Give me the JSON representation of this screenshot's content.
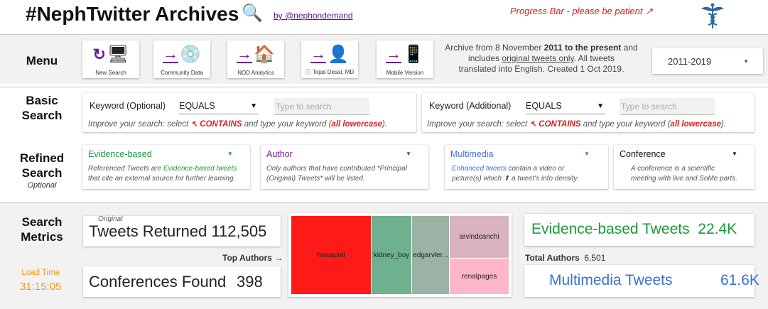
{
  "header": {
    "title": "#NephTwitter Archives",
    "search_icon": "magnifier-icon",
    "byline": "by @nephondemand",
    "progress": "Progress Bar - please be patient ↗",
    "logo_icon": "caduceus-icon"
  },
  "menu": {
    "label": "Menu",
    "buttons": [
      {
        "label": "New Search",
        "icon": "refresh-icon",
        "glyph": "🖥"
      },
      {
        "label": "Community Data",
        "icon": "cd-icon",
        "glyph": "💿"
      },
      {
        "label": "NOD Analytics",
        "icon": "house-icon",
        "glyph": "🏠"
      },
      {
        "label": "ⓘ Tejas Desai, MD",
        "icon": "person-icon",
        "glyph": "👤"
      },
      {
        "label": "Mobile Version",
        "icon": "phone-icon",
        "glyph": "📱"
      }
    ],
    "note_line1": "Archive from 8 November ",
    "note_bold": "2011 to the present",
    "note_line1_end": " and",
    "note_line2_a": "includes ",
    "note_line2_u": "original tweets only",
    "note_line2_b": ". All tweets",
    "note_line3": "translated into English.  Created 1 Oct 2019.",
    "year_select": "2011-2019"
  },
  "basic": {
    "label_line1": "Basic",
    "label_line2": "Search",
    "left": {
      "keyword_label": "Keyword (Optional)",
      "operator": "EQUALS",
      "placeholder": "Type to search",
      "hint_a": "Improve your search:  select ",
      "hint_contains": "↖ CONTAINS",
      "hint_b": " and type your keyword (",
      "hint_lower": "all lowercase",
      "hint_c": ")."
    },
    "right": {
      "keyword_label": "Keyword (Additional)",
      "operator": "EQUALS",
      "placeholder": "Type to search",
      "hint_a": "Improve your search:  select ",
      "hint_contains": "↖ CONTAINS",
      "hint_b": " and type your keyword (",
      "hint_lower": "all lowercase",
      "hint_c": ")."
    }
  },
  "refined": {
    "label_line1": "Refined",
    "label_line2": "Search",
    "label_sub": "Optional",
    "filters": [
      {
        "title": "Evidence-based",
        "color": "#1a9a3a",
        "desc_a": "Referenced Tweets are ",
        "desc_em": "Evidence-based tweets",
        "desc_b": "that cite an external source for further learning."
      },
      {
        "title": "Author",
        "color": "#7a1a9a",
        "desc_a": "Only authors that have contributed *Principal",
        "desc_em": "",
        "desc_b": "(Original) Tweets* will be listed."
      },
      {
        "title": "Multimedia",
        "color": "#3a6fd8",
        "desc_a": "",
        "desc_em": "Enhanced tweets",
        "desc_b": " contain a video or picture(s) which ⬆ a tweet's info density."
      },
      {
        "title": "Conference",
        "color": "#111111",
        "desc_a": "A conference is a scientific",
        "desc_em": "",
        "desc_b": "meeting with live and SoMe parts."
      }
    ]
  },
  "metrics": {
    "label_line1": "Search",
    "label_line2": "Metrics",
    "load_time_label": "Load Time",
    "load_time_value": "31:15:05",
    "original_label": "Original",
    "tweets_returned_label": "Tweets Returned",
    "tweets_returned_value": "112,505",
    "top_authors": "Top Authors →",
    "conferences_label": "Conferences Found",
    "conferences_value": "398",
    "evidence_label": "Evidence-based Tweets",
    "evidence_value": "22.4K",
    "total_authors_label": "Total Authors",
    "total_authors_value": "6,501",
    "multimedia_label": "Multimedia Tweets",
    "multimedia_value": "61.6K",
    "treemap": [
      {
        "name": "hswapnil",
        "color": "#ff1a1a"
      },
      {
        "name": "kidney_boy",
        "color": "#6fb08f"
      },
      {
        "name": "edgarvler...",
        "color": "#9ab3a4"
      },
      {
        "name": "arvindcanchi",
        "color": "#d9b3bf"
      },
      {
        "name": "renalpages",
        "color": "#ffb6c8"
      }
    ]
  }
}
